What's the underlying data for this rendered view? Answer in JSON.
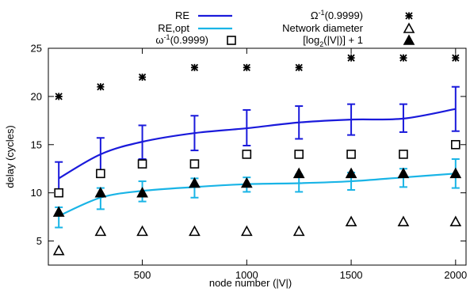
{
  "chart_data": {
    "type": "line",
    "xlabel": "node number (|V|)",
    "ylabel": "delay (cycles)",
    "xlim": [
      50,
      2050
    ],
    "ylim": [
      2.5,
      25
    ],
    "x_ticks": [
      500,
      1000,
      1500,
      2000
    ],
    "y_ticks": [
      5,
      10,
      15,
      20,
      25
    ],
    "grid": false,
    "legend_placement": "top, two columns",
    "colors": {
      "re": "#1a1adb",
      "re_opt": "#19b4e6",
      "markers": "#000000",
      "axes": "#000000"
    },
    "series": [
      {
        "key": "re",
        "name": "RE",
        "kind": "line-errorbars",
        "x": [
          100,
          300,
          500,
          750,
          1000,
          1250,
          1500,
          1750,
          2000
        ],
        "y": [
          11.5,
          14.0,
          15.3,
          16.2,
          16.7,
          17.3,
          17.6,
          17.7,
          18.7
        ],
        "err_low": [
          9.8,
          12.3,
          13.5,
          14.4,
          14.9,
          15.6,
          16.0,
          16.3,
          16.4
        ],
        "err_high": [
          13.2,
          15.7,
          17.0,
          18.0,
          18.6,
          19.0,
          19.2,
          19.2,
          21.0
        ]
      },
      {
        "key": "re_opt",
        "name": "RE,opt",
        "kind": "line-errorbars",
        "x": [
          100,
          300,
          500,
          750,
          1000,
          1250,
          1500,
          1750,
          2000
        ],
        "y": [
          7.6,
          9.5,
          10.2,
          10.6,
          10.9,
          11.0,
          11.2,
          11.6,
          12.0
        ],
        "err_low": [
          6.4,
          8.3,
          9.1,
          9.5,
          10.1,
          10.1,
          10.3,
          10.6,
          10.5
        ],
        "err_high": [
          8.5,
          10.5,
          11.2,
          11.5,
          11.6,
          11.9,
          12.1,
          12.5,
          13.5
        ]
      },
      {
        "key": "omega_inv",
        "name": "ω⁻¹(0.9999)",
        "kind": "marker-square",
        "x": [
          100,
          300,
          500,
          750,
          1000,
          1250,
          1500,
          1750,
          2000
        ],
        "y": [
          10,
          12,
          13,
          13,
          14,
          14,
          14,
          14,
          15
        ]
      },
      {
        "key": "Omega_inv",
        "name": "Ω⁻¹(0.9999)",
        "kind": "marker-star",
        "x": [
          100,
          300,
          500,
          750,
          1000,
          1250,
          1500,
          1750,
          2000
        ],
        "y": [
          20,
          21,
          22,
          23,
          23,
          23,
          24,
          24,
          24
        ]
      },
      {
        "key": "diameter",
        "name": "Network diameter",
        "kind": "marker-triangle-open",
        "x": [
          100,
          300,
          500,
          750,
          1000,
          1250,
          1500,
          1750,
          2000
        ],
        "y": [
          4,
          6,
          6,
          6,
          6,
          6,
          7,
          7,
          7
        ]
      },
      {
        "key": "log2",
        "name": "[log2(|V|)] + 1",
        "kind": "marker-triangle-filled",
        "x": [
          100,
          300,
          500,
          750,
          1000,
          1250,
          1500,
          1750,
          2000
        ],
        "y": [
          8,
          10,
          10,
          11,
          11,
          12,
          12,
          12,
          12
        ]
      }
    ]
  }
}
